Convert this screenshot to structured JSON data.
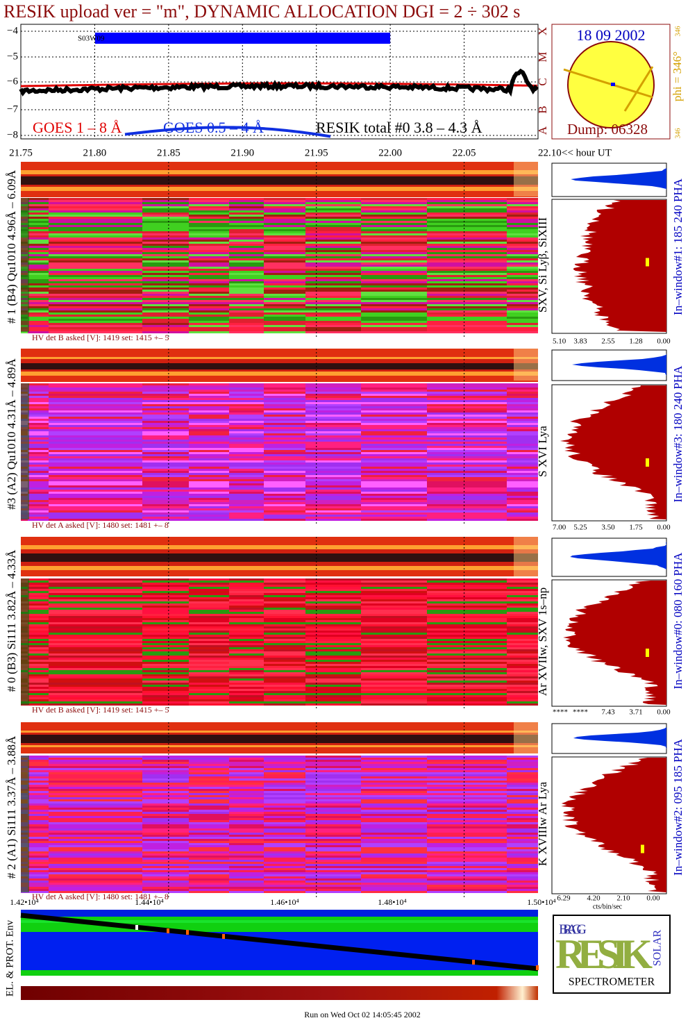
{
  "header": {
    "title": "RESIK upload ver = \"m\", DYNAMIC ALLOCATION  DGI =   2 ÷ 302 s"
  },
  "goes_panel": {
    "yticks": [
      "−4",
      "−5",
      "−6",
      "−7",
      "−8"
    ],
    "flag": "S03W09",
    "legend": [
      "GOES 1 – 8 Å",
      "GOES 0.5 – 4 Å",
      "RESIK total #0  3.8 – 4.3 Å"
    ],
    "class_labels": [
      "X",
      "M",
      "C",
      "B",
      "A"
    ],
    "xticks": [
      "21.75",
      "21.80",
      "21.85",
      "21.90",
      "21.95",
      "22.00",
      "22.05",
      "22.10"
    ],
    "x_unit": "<< hour UT"
  },
  "sun": {
    "date": "18 09 2002",
    "phi": "phi = 346°",
    "phi_small": "346",
    "phi_bottom": "346",
    "dump": "Dump: 06328"
  },
  "channels": [
    {
      "label": "# 1 (B4) Qu1010 4.96Å – 6.09Å",
      "lines": "SXV, Si Lyβ, SiXIII",
      "window": "In–window#1:  185 240 PHA",
      "hv": "HV det B asked [V]:  1419 set:  1415  +–    5",
      "pha_ticks": [
        "5.10",
        "3.83",
        "2.55",
        "1.28",
        "0.00"
      ]
    },
    {
      "label": "#3 (A2) Qu1010  4.31Å – 4.89Å",
      "lines": "S XVI Lya",
      "window": "In–window#3:  180 240 PHA",
      "hv": "HV det A asked [V]:  1480 set:  1481  +–    8",
      "pha_ticks": [
        "7.00",
        "5.25",
        "3.50",
        "1.75",
        "0.00"
      ]
    },
    {
      "label": "# 0 (B3) Si111  3.82Å – 4.33Å",
      "lines": "Ar XVIIw,  SXV 1s–np",
      "window": "In–window#0:  080 160 PHA",
      "hv": "HV det B asked [V]:  1419 set:  1415  +–    5",
      "pha_ticks": [
        "****",
        "****",
        "7.43",
        "3.71",
        "0.00"
      ]
    },
    {
      "label": "# 2 (A1) Si111  3.37Å – 3.88Å",
      "lines": "K XVIIIw  Ar Lya",
      "window": "In–window#2:  095 185 PHA",
      "hv": "HV det A asked [V]:  1480 set:  1481  +–    8",
      "pha_ticks": [
        "6.29",
        "4.20",
        "2.10",
        "0.00"
      ]
    }
  ],
  "bottom": {
    "xticks": [
      "1.42•10⁴",
      "1.44•10⁴",
      "1.46•10⁴",
      "1.48•10⁴",
      "1.50•10⁴"
    ],
    "env_label": "EL. & PROT. Env",
    "cts": "cts/bin/sec",
    "footer": "Run on Wed Oct 02 14:05:45 2002"
  },
  "logo": {
    "bragg": "BRAGG",
    "resik": "RESIK",
    "solar": "SOLAR",
    "spectrometer": "SPECTROMETER"
  }
}
